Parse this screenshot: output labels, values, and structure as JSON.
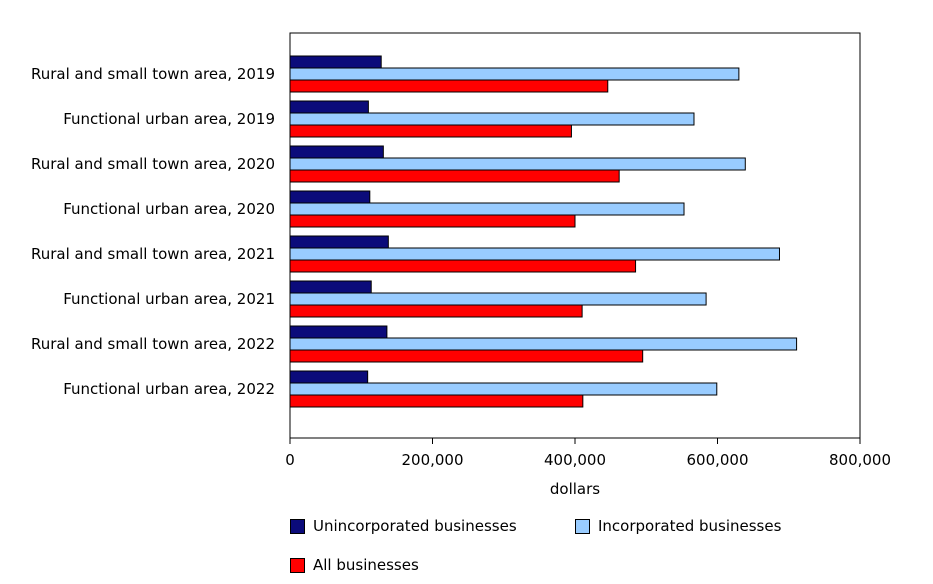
{
  "chart_data": {
    "type": "bar",
    "orientation": "horizontal",
    "title": "",
    "xlabel": "dollars",
    "ylabel": "",
    "xlim": [
      0,
      800000
    ],
    "xticks": [
      0,
      200000,
      400000,
      600000,
      800000
    ],
    "xtick_labels": [
      "0",
      "200,000",
      "400,000",
      "600,000",
      "800,000"
    ],
    "grid": false,
    "legend_position": "bottom",
    "categories": [
      "Rural and small town area, 2019",
      "Functional urban area, 2019",
      "Rural and small town area, 2020",
      "Functional urban area, 2020",
      "Rural and small town area, 2021",
      "Functional urban area, 2021",
      "Rural and small town area, 2022",
      "Functional urban area, 2022"
    ],
    "series": [
      {
        "name": "Unincorporated businesses",
        "color": "#0b0b7a",
        "values": [
          128000,
          110000,
          131000,
          112000,
          138000,
          114000,
          136000,
          109000
        ]
      },
      {
        "name": "Incorporated businesses",
        "color": "#99ccff",
        "values": [
          630000,
          567000,
          639000,
          553000,
          687000,
          584000,
          711000,
          599000
        ]
      },
      {
        "name": "All businesses",
        "color": "#ff0000",
        "values": [
          446000,
          395000,
          462000,
          400000,
          485000,
          410000,
          495000,
          411000
        ]
      }
    ]
  }
}
